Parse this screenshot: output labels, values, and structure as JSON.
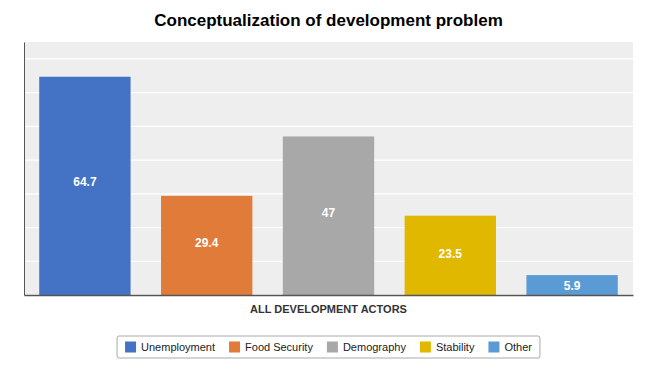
{
  "chart_data": {
    "type": "bar",
    "title": "Conceptualization of development problem",
    "xlabel": "ALL DEVELOPMENT ACTORS",
    "categories": [
      "Unemployment",
      "Food Security",
      "Demography",
      "Stability",
      "Other"
    ],
    "values": [
      64.7,
      29.4,
      47,
      23.5,
      5.9
    ],
    "colors": [
      "#4472c4",
      "#e07b39",
      "#a8a8a8",
      "#e0b800",
      "#5b9bd5"
    ],
    "ylim": [
      0,
      75
    ],
    "yticks": [
      0,
      10,
      20,
      30,
      40,
      50,
      60,
      70
    ],
    "grid": true,
    "tick_labels": false,
    "data_labels": true,
    "legend": "bottom"
  }
}
